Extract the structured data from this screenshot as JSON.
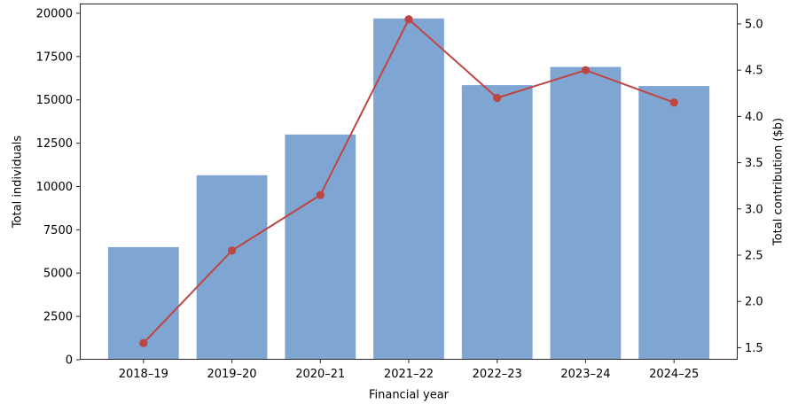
{
  "chart_data": {
    "type": "bar",
    "subtype": "bar-line-combo-dual-axis",
    "title": "",
    "categories": [
      "2018–19",
      "2019–20",
      "2020–21",
      "2021–22",
      "2022–23",
      "2023–24",
      "2024–25"
    ],
    "series": [
      {
        "name": "Total individuals",
        "render": "bar",
        "axis": "left",
        "values": [
          6500,
          10650,
          13000,
          19700,
          15850,
          16900,
          15800
        ],
        "color": "#7fa5d2"
      },
      {
        "name": "Total contribution ($b)",
        "render": "line",
        "axis": "right",
        "values": [
          1.55,
          2.55,
          3.15,
          5.05,
          4.2,
          4.5,
          4.15
        ],
        "color": "#bf4540"
      }
    ],
    "xlabel": "Financial year",
    "ylabel_left": "Total individuals",
    "ylabel_right": "Total contribution ($b)",
    "left_ticks": [
      0,
      2500,
      5000,
      7500,
      10000,
      12500,
      15000,
      17500,
      20000
    ],
    "right_ticks": [
      1.5,
      2.0,
      2.5,
      3.0,
      3.5,
      4.0,
      4.5,
      5.0
    ],
    "left_ylim": [
      0,
      20560
    ],
    "right_ylim": [
      1.37,
      5.22
    ],
    "xlim": [
      -0.72,
      6.72
    ],
    "bar_width": 0.8,
    "grid": false,
    "legend": "none",
    "spine_color": "#262626",
    "text_color": "#000000",
    "background_color": "#ffffff"
  }
}
